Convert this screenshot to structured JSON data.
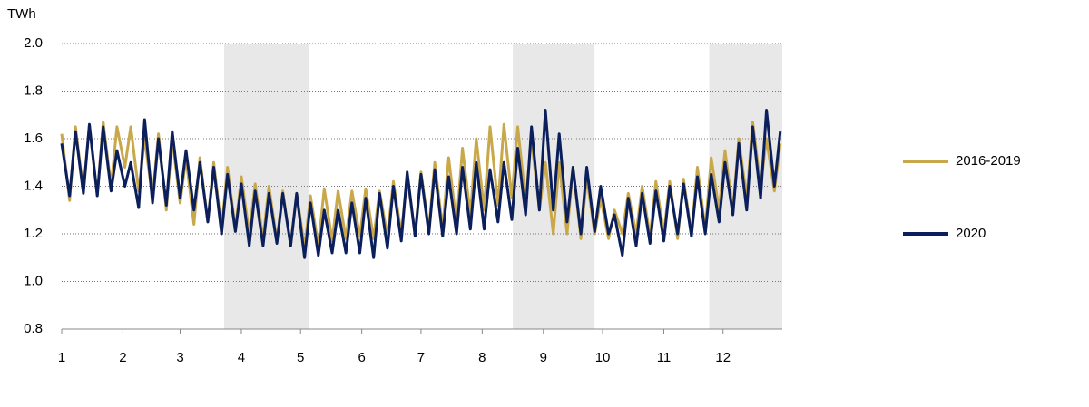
{
  "chart_data": {
    "type": "line",
    "y_unit": "TWh",
    "x": [
      1,
      5,
      8,
      12,
      15,
      19,
      22,
      26,
      29,
      33,
      36,
      40,
      43,
      47,
      50,
      54,
      57,
      61,
      64,
      68,
      71,
      75,
      78,
      82,
      85,
      89,
      92,
      96,
      99,
      103,
      106,
      110,
      113,
      117,
      120,
      124,
      127,
      131,
      134,
      138,
      141,
      145,
      148,
      152,
      155,
      159,
      162,
      166,
      169,
      173,
      176,
      180,
      183,
      187,
      190,
      194,
      197,
      201,
      204,
      208,
      211,
      215,
      218,
      222,
      225,
      229,
      232,
      236,
      239,
      243,
      246,
      250,
      253,
      257,
      260,
      264,
      267,
      271,
      274,
      278,
      281,
      285,
      288,
      292,
      295,
      299,
      302,
      306,
      309,
      313,
      316,
      320,
      323,
      327,
      330,
      334,
      337,
      341,
      344,
      348,
      351,
      355,
      358,
      362,
      365
    ],
    "series": [
      {
        "name": "2016-2019",
        "color": "#c9a84c",
        "values": [
          1.62,
          1.34,
          1.65,
          1.38,
          1.66,
          1.36,
          1.67,
          1.4,
          1.65,
          1.48,
          1.65,
          1.38,
          1.6,
          1.35,
          1.62,
          1.3,
          1.6,
          1.33,
          1.52,
          1.24,
          1.52,
          1.25,
          1.5,
          1.22,
          1.48,
          1.22,
          1.44,
          1.2,
          1.41,
          1.18,
          1.4,
          1.17,
          1.38,
          1.15,
          1.37,
          1.14,
          1.36,
          1.15,
          1.39,
          1.17,
          1.38,
          1.18,
          1.38,
          1.19,
          1.39,
          1.18,
          1.38,
          1.19,
          1.42,
          1.2,
          1.44,
          1.2,
          1.46,
          1.22,
          1.5,
          1.22,
          1.52,
          1.24,
          1.56,
          1.28,
          1.6,
          1.3,
          1.65,
          1.32,
          1.66,
          1.35,
          1.65,
          1.34,
          1.6,
          1.3,
          1.5,
          1.2,
          1.5,
          1.2,
          1.48,
          1.18,
          1.44,
          1.2,
          1.35,
          1.18,
          1.3,
          1.2,
          1.37,
          1.2,
          1.4,
          1.19,
          1.42,
          1.2,
          1.42,
          1.18,
          1.43,
          1.2,
          1.48,
          1.22,
          1.52,
          1.3,
          1.55,
          1.3,
          1.6,
          1.35,
          1.67,
          1.4,
          1.6,
          1.38,
          1.58
        ]
      },
      {
        "name": "2020",
        "color": "#0b1f5c",
        "values": [
          1.58,
          1.36,
          1.63,
          1.37,
          1.66,
          1.36,
          1.65,
          1.38,
          1.55,
          1.4,
          1.5,
          1.31,
          1.68,
          1.33,
          1.6,
          1.32,
          1.63,
          1.35,
          1.55,
          1.3,
          1.5,
          1.25,
          1.48,
          1.2,
          1.45,
          1.21,
          1.41,
          1.15,
          1.38,
          1.15,
          1.37,
          1.16,
          1.37,
          1.15,
          1.37,
          1.1,
          1.33,
          1.11,
          1.3,
          1.12,
          1.3,
          1.12,
          1.33,
          1.12,
          1.35,
          1.1,
          1.37,
          1.14,
          1.4,
          1.17,
          1.46,
          1.19,
          1.45,
          1.2,
          1.47,
          1.19,
          1.44,
          1.2,
          1.48,
          1.22,
          1.5,
          1.22,
          1.47,
          1.25,
          1.5,
          1.26,
          1.56,
          1.28,
          1.65,
          1.3,
          1.72,
          1.3,
          1.62,
          1.25,
          1.48,
          1.2,
          1.48,
          1.21,
          1.4,
          1.2,
          1.28,
          1.11,
          1.35,
          1.15,
          1.37,
          1.16,
          1.38,
          1.17,
          1.4,
          1.2,
          1.41,
          1.19,
          1.44,
          1.2,
          1.45,
          1.25,
          1.5,
          1.28,
          1.58,
          1.3,
          1.65,
          1.35,
          1.72,
          1.4,
          1.63
        ]
      }
    ],
    "xlim": [
      1,
      366
    ],
    "xticks": [
      {
        "value": 1,
        "label": "1"
      },
      {
        "value": 32,
        "label": "2"
      },
      {
        "value": 61,
        "label": "3"
      },
      {
        "value": 92,
        "label": "4"
      },
      {
        "value": 122,
        "label": "5"
      },
      {
        "value": 153,
        "label": "6"
      },
      {
        "value": 183,
        "label": "7"
      },
      {
        "value": 214,
        "label": "8"
      },
      {
        "value": 245,
        "label": "9"
      },
      {
        "value": 275,
        "label": "10"
      },
      {
        "value": 306,
        "label": "11"
      },
      {
        "value": 336,
        "label": "12"
      }
    ],
    "ylim": [
      0.8,
      2.0
    ],
    "yticks": [
      0.8,
      {
        "value": 1.0,
        "label": "1.0"
      },
      1.2,
      1.4,
      1.6,
      1.8,
      {
        "value": 2.0,
        "label": "2.0"
      }
    ],
    "grid": true,
    "shaded_ranges": [
      [
        83.3,
        126.5
      ],
      [
        229.5,
        270.9
      ],
      [
        329,
        366
      ]
    ],
    "shade_color": "#e8e8e8",
    "legend": "right"
  }
}
